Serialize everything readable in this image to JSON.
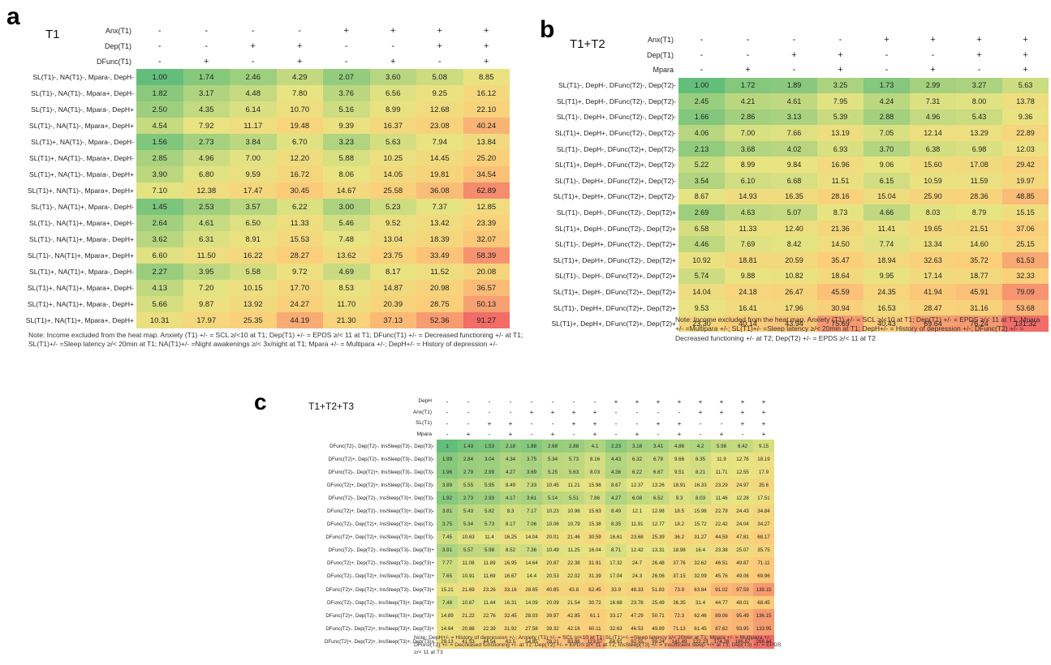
{
  "panels": [
    {
      "label": "a",
      "title": "T1",
      "header_rows": [
        {
          "name": "Anx(T1)",
          "signs": [
            "-",
            "-",
            "-",
            "-",
            "+",
            "+",
            "+",
            "+"
          ]
        },
        {
          "name": "Dep(T1)",
          "signs": [
            "-",
            "-",
            "+",
            "+",
            "-",
            "-",
            "+",
            "+"
          ]
        },
        {
          "name": "DFunc(T1)",
          "signs": [
            "-",
            "+",
            "-",
            "+",
            "-",
            "+",
            "-",
            "+"
          ]
        }
      ],
      "note": "Note: Income excluded from the heat map. Anxiety (T1) +/- = SCL ≥/<10 at T1; Dep(T1) +/- = EPDS ≥/< 11 at T1; DFunc(T1) +/- = Decreased functioning +/- at T1; SL(T1)+/- =Sleep latency ≥/< 20min at T1; NA(T1)+/- =Night awakenings ≥/< 3x/night at T1; Mpara +/- = Multipara +/-; DepH+/- = History of depression +/-"
    },
    {
      "label": "b",
      "title": "T1+T2",
      "header_rows": [
        {
          "name": "Anx(T1)",
          "signs": [
            "-",
            "-",
            "-",
            "-",
            "+",
            "+",
            "+",
            "+"
          ]
        },
        {
          "name": "Dep(T1)",
          "signs": [
            "-",
            "-",
            "+",
            "+",
            "-",
            "-",
            "+",
            "+"
          ]
        },
        {
          "name": "Mpara",
          "signs": [
            "-",
            "+",
            "-",
            "+",
            "-",
            "+",
            "-",
            "+"
          ]
        }
      ],
      "note": "Note: Income excluded from the heat map. Anxiety (T1) +/- = SCL ≥/<10 at T1; Dep(T1) +/- = EPDS ≥/< 11 at T1; Mpara +/- =Multipara +/-; SL(T1)+/- =Sleep latency ≥/< 20min at T1; DepH+/- = History of depression +/-; DFunc(T2) +/- = Decreased functioning +/- at T2; Dep(T2) +/- = EPDS ≥/< 11 at T2"
    },
    {
      "label": "c",
      "title": "T1+T2+T3",
      "header_rows": [
        {
          "name": "DepH",
          "signs": [
            "-",
            "-",
            "-",
            "-",
            "-",
            "-",
            "-",
            "-",
            "+",
            "+",
            "+",
            "+",
            "+",
            "+",
            "+",
            "+"
          ]
        },
        {
          "name": "Anx(T1)",
          "signs": [
            "-",
            "-",
            "-",
            "-",
            "+",
            "+",
            "+",
            "+",
            "-",
            "-",
            "-",
            "-",
            "+",
            "+",
            "+",
            "+"
          ]
        },
        {
          "name": "SL(T1)",
          "signs": [
            "-",
            "-",
            "+",
            "+",
            "-",
            "-",
            "+",
            "+",
            "-",
            "-",
            "+",
            "+",
            "-",
            "-",
            "+",
            "+"
          ]
        },
        {
          "name": "Mpara",
          "signs": [
            "-",
            "+",
            "-",
            "+",
            "-",
            "+",
            "-",
            "+",
            "-",
            "+",
            "-",
            "+",
            "-",
            "+",
            "-",
            "+"
          ]
        }
      ],
      "note": "Note: DepH+/- = History of depression +/-; Anxiety (T1) +/- = SCL ≥/<10 at T1; SL(T1)+/- =Sleep latency ≥/< 20min at T1; Mpara +/- = Multipara +/-; DFunc(T2) +/- = Decreased functioning +/- at T2; Dep(T2) +/- = EPDS ≥/< 11 at T2; InsSleep(T3) +/- = Insufficient sleep +/+ at T3; Dep(T3) +/- = EPDS ≥/< 11 at T3"
    }
  ],
  "chart_data": [
    {
      "type": "heatmap",
      "title": "T1",
      "row_labels": [
        "SL(T1)-, NA(T1)-, Mpara-, DepH-",
        "SL(T1)-, NA(T1)-, Mpara+, DepH-",
        "SL(T1)-, NA(T1)-, Mpara-, DepH+",
        "SL(T1)-, NA(T1)-, Mpara+, DepH+",
        "SL(T1)+, NA(T1)-, Mpara-, DepH-",
        "SL(T1)+, NA(T1)-, Mpara+, DepH-",
        "SL(T1)+, NA(T1)-, Mpara-, DepH+",
        "SL(T1)+, NA(T1)-, Mpara+, DepH+",
        "SL(T1)-, NA(T1)+, Mpara-, DepH-",
        "SL(T1)-, NA(T1)+, Mpara+, DepH-",
        "SL(T1)-, NA(T1)+, Mpara-, DepH+",
        "SL(T1)-, NA(T1)+, Mpara+, DepH+",
        "SL(T1)+, NA(T1)+, Mpara-, DepH-",
        "SL(T1)+, NA(T1)+, Mpara+, DepH-",
        "SL(T1)+, NA(T1)+, Mpara-, DepH+",
        "SL(T1)+, NA(T1)+, Mpara+, DepH+"
      ],
      "values": [
        [
          "1.00",
          "1.74",
          "2.46",
          "4.29",
          "2.07",
          "3.60",
          "5.08",
          "8.85"
        ],
        [
          "1.82",
          "3.17",
          "4.48",
          "7.80",
          "3.76",
          "6.56",
          "9.25",
          "16.12"
        ],
        [
          "2.50",
          "4.35",
          "6.14",
          "10.70",
          "5.16",
          "8.99",
          "12.68",
          "22.10"
        ],
        [
          "4.54",
          "7.92",
          "11.17",
          "19.48",
          "9.39",
          "16.37",
          "23.08",
          "40.24"
        ],
        [
          "1.56",
          "2.73",
          "3.84",
          "6.70",
          "3.23",
          "5.63",
          "7.94",
          "13.84"
        ],
        [
          "2.85",
          "4.96",
          "7.00",
          "12.20",
          "5.88",
          "10.25",
          "14.45",
          "25.20"
        ],
        [
          "3.90",
          "6.80",
          "9.59",
          "16.72",
          "8.06",
          "14.05",
          "19.81",
          "34.54"
        ],
        [
          "7.10",
          "12.38",
          "17.47",
          "30.45",
          "14.67",
          "25.58",
          "36.08",
          "62.89"
        ],
        [
          "1.45",
          "2.53",
          "3.57",
          "6.22",
          "3.00",
          "5.23",
          "7.37",
          "12.85"
        ],
        [
          "2.64",
          "4.61",
          "6.50",
          "11.33",
          "5.46",
          "9.52",
          "13.42",
          "23.39"
        ],
        [
          "3.62",
          "6.31",
          "8.91",
          "15.53",
          "7.48",
          "13.04",
          "18.39",
          "32.07"
        ],
        [
          "6.60",
          "11.50",
          "16.22",
          "28.27",
          "13.62",
          "23.75",
          "33.49",
          "58.39"
        ],
        [
          "2.27",
          "3.95",
          "5.58",
          "9.72",
          "4.69",
          "8.17",
          "11.52",
          "20.08"
        ],
        [
          "4.13",
          "7.20",
          "10.15",
          "17.70",
          "8.53",
          "14.87",
          "20.98",
          "36.57"
        ],
        [
          "5.66",
          "9.87",
          "13.92",
          "24.27",
          "11.70",
          "20.39",
          "28.75",
          "50.13"
        ],
        [
          "10.31",
          "17.97",
          "25.35",
          "44.19",
          "21.30",
          "37.13",
          "52.36",
          "91.27"
        ]
      ]
    },
    {
      "type": "heatmap",
      "title": "T1+T2",
      "row_labels": [
        "SL(T1)-, DepH-, DFunc(T2)-, Dep(T2)-",
        "SL(T1)+, DepH-, DFunc(T2)-, Dep(T2)-",
        "SL(T1)-, DepH+, DFunc(T2)-, Dep(T2)-",
        "SL(T1)+, DepH+, DFunc(T2)-, Dep(T2)-",
        "SL(T1)-, DepH-, DFunc(T2)+, Dep(T2)-",
        "SL(T1)+, DepH-, DFunc(T2)+, Dep(T2)-",
        "SL(T1)-, DepH+, DFunc(T2)+, Dep(T2)-",
        "SL(T1)+, DepH+, DFunc(T2)+, Dep(T2)-",
        "SL(T1)-, DepH-, DFunc(T2)-, Dep(T2)+",
        "SL(T1)+, DepH-, DFunc(T2)-, Dep(T2)+",
        "SL(T1)-, DepH+, DFunc(T2)-, Dep(T2)+",
        "SL(T1)+, DepH+, DFunc(T2)-, Dep(T2)+",
        "SL(T1)-, DepH-, DFunc(T2)+, Dep(T2)+",
        "SL(T1)+, DepH-, DFunc(T2)+, Dep(T2)+",
        "SL(T1)-, DepH+, DFunc(T2)+, Dep(T2)+",
        "SL(T1)+, DepH+, DFunc(T2)+, Dep(T2)+"
      ],
      "values": [
        [
          "1.00",
          "1.72",
          "1.89",
          "3.25",
          "1.73",
          "2.99",
          "3.27",
          "5.63"
        ],
        [
          "2.45",
          "4.21",
          "4.61",
          "7.95",
          "4.24",
          "7.31",
          "8.00",
          "13.78"
        ],
        [
          "1.66",
          "2.86",
          "3.13",
          "5.39",
          "2.88",
          "4.96",
          "5.43",
          "9.36"
        ],
        [
          "4.06",
          "7.00",
          "7.66",
          "13.19",
          "7.05",
          "12.14",
          "13.29",
          "22.89"
        ],
        [
          "2.13",
          "3.68",
          "4.02",
          "6.93",
          "3.70",
          "6.38",
          "6.98",
          "12.03"
        ],
        [
          "5.22",
          "8.99",
          "9.84",
          "16.96",
          "9.06",
          "15.60",
          "17.08",
          "29.42"
        ],
        [
          "3.54",
          "6.10",
          "6.68",
          "11.51",
          "6.15",
          "10.59",
          "11.59",
          "19.97"
        ],
        [
          "8.67",
          "14.93",
          "16.35",
          "28.16",
          "15.04",
          "25.90",
          "28.36",
          "48.85"
        ],
        [
          "2.69",
          "4.63",
          "5.07",
          "8.73",
          "4.66",
          "8.03",
          "8.79",
          "15.15"
        ],
        [
          "6.58",
          "11.33",
          "12.40",
          "21.36",
          "11.41",
          "19.65",
          "21.51",
          "37.06"
        ],
        [
          "4.46",
          "7.69",
          "8.42",
          "14.50",
          "7.74",
          "13.34",
          "14.60",
          "25.15"
        ],
        [
          "10.92",
          "18.81",
          "20.59",
          "35.47",
          "18.94",
          "32.63",
          "35.72",
          "61.53"
        ],
        [
          "5.74",
          "9.88",
          "10.82",
          "18.64",
          "9.95",
          "17.14",
          "18.77",
          "32.33"
        ],
        [
          "14.04",
          "24.18",
          "26.47",
          "45.59",
          "24.35",
          "41.94",
          "45.91",
          "79.09"
        ],
        [
          "9.53",
          "16.41",
          "17.96",
          "30.94",
          "16.53",
          "28.47",
          "31.16",
          "53.68"
        ],
        [
          "23.30",
          "40.14",
          "43.94",
          "75.69",
          "40.43",
          "69.64",
          "76.24",
          "131.32"
        ]
      ]
    },
    {
      "type": "heatmap",
      "title": "T1+T2+T3",
      "row_labels": [
        "DFunc(T2)-, Dep(T2)-, InsSleep(T3)-, Dep(T3)-",
        "DFunc(T2)+, Dep(T2)-, InsSleep(T3)-, Dep(T3)-",
        "DFunc(T2)-, Dep(T2)+, InsSleep(T3)-, Dep(T3)-",
        "DFunc(T2)+, Dep(T2)+, InsSleep(T3)-, Dep(T3)-",
        "DFunc(T2)-, Dep(T2)-, InsSleep(T3)+, Dep(T3)-",
        "DFunc(T2)+, Dep(T2)-, InsSleep(T3)+, Dep(T3)-",
        "DFunc(T2)-, Dep(T2)+, InsSleep(T3)+, Dep(T3)-",
        "DFunc(T2)+, Dep(T2)+, InsSleep(T3)+, Dep(T3)-",
        "DFunc(T2)-, Dep(T2)-, InsSleep(T3)-, Dep(T3)+",
        "DFunc(T2)+, Dep(T2)-, InsSleep(T3)-, Dep(T3)+",
        "DFunc(T2)-, Dep(T2)+, InsSleep(T3)-, Dep(T3)+",
        "DFunc(T2)+, Dep(T2)+, InsSleep(T3)-, Dep(T3)+",
        "DFunc(T2)-, Dep(T2)-, InsSleep(T3)+, Dep(T3)+",
        "DFunc(T2)+, Dep(T2)-, InsSleep(T3)+, Dep(T3)+",
        "DFunc(T2)-, Dep(T2)+, InsSleep(T3)+, Dep(T3)+",
        "DFunc(T2)+, Dep(T2)+, InsSleep(T3)+, Dep(T3)+"
      ],
      "values": [
        [
          "1",
          "1.43",
          "1.53",
          "2.18",
          "1.88",
          "2.68",
          "2.88",
          "4.1",
          "2.23",
          "3.18",
          "3.41",
          "4.86",
          "4.2",
          "5.98",
          "6.42",
          "9.15"
        ],
        [
          "1.99",
          "2.84",
          "3.04",
          "4.34",
          "3.75",
          "5.34",
          "5.73",
          "8.16",
          "4.43",
          "6.32",
          "6.78",
          "9.66",
          "8.35",
          "11.9",
          "12.76",
          "18.19"
        ],
        [
          "1.96",
          "2.79",
          "2.99",
          "4.27",
          "3.69",
          "5.25",
          "5.63",
          "8.03",
          "4.36",
          "6.22",
          "6.67",
          "9.51",
          "8.21",
          "11.71",
          "12.55",
          "17.9"
        ],
        [
          "3.89",
          "5.55",
          "5.95",
          "8.49",
          "7.33",
          "10.45",
          "11.21",
          "15.98",
          "8.67",
          "12.37",
          "13.26",
          "18.91",
          "16.33",
          "23.29",
          "24.97",
          "35.6"
        ],
        [
          "1.92",
          "2.73",
          "2.93",
          "4.17",
          "3.61",
          "5.14",
          "5.51",
          "7.86",
          "4.27",
          "6.08",
          "6.52",
          "9.3",
          "8.03",
          "11.46",
          "12.28",
          "17.51"
        ],
        [
          "3.81",
          "5.43",
          "5.82",
          "8.3",
          "7.17",
          "10.23",
          "10.96",
          "15.63",
          "8.49",
          "12.1",
          "12.98",
          "18.5",
          "15.98",
          "22.79",
          "24.43",
          "34.84"
        ],
        [
          "3.75",
          "5.34",
          "5.73",
          "8.17",
          "7.06",
          "10.06",
          "10.79",
          "15.38",
          "8.35",
          "11.91",
          "12.77",
          "18.2",
          "15.72",
          "22.42",
          "24.04",
          "34.27"
        ],
        [
          "7.45",
          "10.63",
          "11.4",
          "16.25",
          "14.04",
          "20.01",
          "21.46",
          "30.59",
          "16.61",
          "23.68",
          "25.39",
          "36.2",
          "31.27",
          "44.59",
          "47.81",
          "68.17"
        ],
        [
          "3.91",
          "5.57",
          "5.98",
          "8.52",
          "7.36",
          "10.49",
          "11.25",
          "16.04",
          "8.71",
          "12.42",
          "13.31",
          "18.98",
          "16.4",
          "23.38",
          "25.07",
          "35.75"
        ],
        [
          "7.77",
          "11.08",
          "11.89",
          "16.95",
          "14.64",
          "20.87",
          "22.38",
          "31.91",
          "17.32",
          "24.7",
          "26.48",
          "37.76",
          "32.62",
          "46.51",
          "49.87",
          "71.11"
        ],
        [
          "7.65",
          "10.91",
          "11.69",
          "16.67",
          "14.4",
          "20.53",
          "22.02",
          "31.39",
          "17.04",
          "24.3",
          "26.06",
          "37.15",
          "32.09",
          "45.76",
          "49.06",
          "69.96"
        ],
        [
          "15.21",
          "21.69",
          "23.26",
          "33.16",
          "28.65",
          "40.85",
          "43.8",
          "62.45",
          "33.9",
          "48.33",
          "51.83",
          "73.9",
          "63.84",
          "91.02",
          "97.59",
          "139.15"
        ],
        [
          "7.48",
          "10.67",
          "11.44",
          "16.31",
          "14.09",
          "20.09",
          "21.54",
          "30.72",
          "16.68",
          "23.78",
          "25.49",
          "36.35",
          "31.4",
          "44.77",
          "48.01",
          "68.45"
        ],
        [
          "14.89",
          "21.22",
          "22.76",
          "32.45",
          "28.03",
          "39.97",
          "42.85",
          "61.1",
          "33.17",
          "47.29",
          "50.71",
          "72.3",
          "62.46",
          "89.06",
          "95.49",
          "136.15"
        ],
        [
          "14.64",
          "20.88",
          "22.39",
          "31.92",
          "27.58",
          "39.32",
          "42.16",
          "60.11",
          "32.63",
          "46.53",
          "49.89",
          "71.13",
          "61.45",
          "87.62",
          "93.95",
          "133.95"
        ],
        [
          "29.13",
          "41.53",
          "44.54",
          "63.5",
          "54.85",
          "78.21",
          "83.86",
          "119.57",
          "64.91",
          "92.55",
          "99.24",
          "141.49",
          "122.23",
          "174.28",
          "186.87",
          "266.44"
        ]
      ]
    }
  ]
}
